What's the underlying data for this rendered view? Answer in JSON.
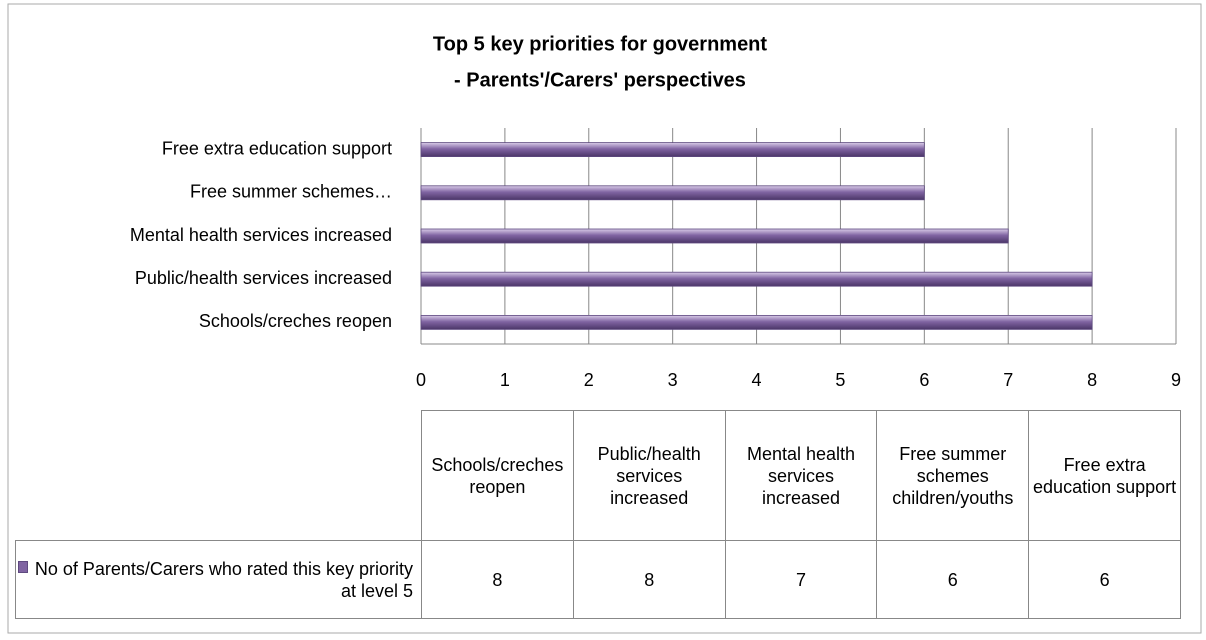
{
  "chart_data": {
    "type": "bar",
    "orientation": "horizontal",
    "title": "Top 5 key priorities for government",
    "subtitle": "- Parents'/Carers' perspectives",
    "categories": [
      "Schools/creches reopen",
      "Public/health services increased",
      "Mental health services increased",
      "Free summer schemes children/youths",
      "Free extra education support"
    ],
    "axis_labels": [
      "Schools/creches reopen",
      "Public/health services increased",
      "Mental health services increased",
      "Free summer schemes…",
      "Free extra education support"
    ],
    "series": [
      {
        "name": "No of Parents/Carers who rated this key priority at level 5",
        "color": "#8064a2",
        "values": [
          8,
          8,
          7,
          6,
          6
        ]
      }
    ],
    "xlim": [
      0,
      9
    ],
    "xticks": [
      0,
      1,
      2,
      3,
      4,
      5,
      6,
      7,
      8,
      9
    ],
    "grid": true,
    "data_table": true
  }
}
